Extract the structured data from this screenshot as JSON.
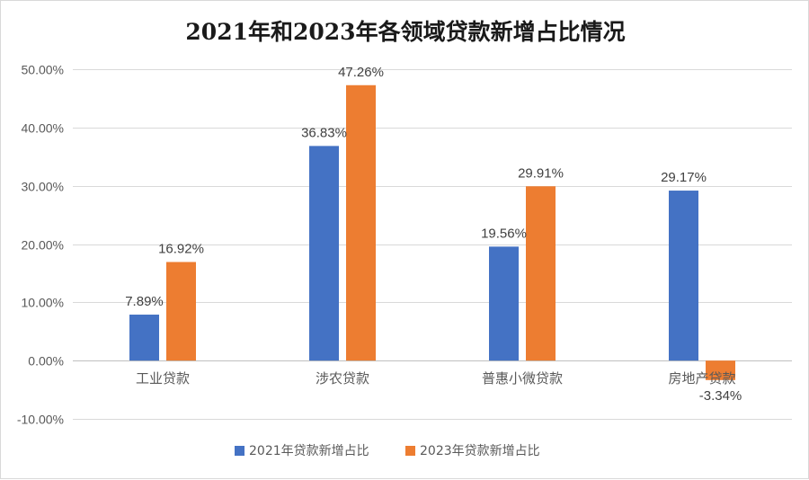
{
  "chart_data": {
    "type": "bar",
    "title": "2021年和2023年各领域贷款新增占比情况",
    "categories": [
      "工业贷款",
      "涉农贷款",
      "普惠小微贷款",
      "房地产贷款"
    ],
    "series": [
      {
        "name": "2021年贷款新增占比",
        "color": "#4472C4",
        "values": [
          7.89,
          36.83,
          19.56,
          29.17
        ],
        "labels": [
          "7.89%",
          "36.83%",
          "19.56%",
          "29.17%"
        ]
      },
      {
        "name": "2023年贷款新增占比",
        "color": "#ED7D31",
        "values": [
          16.92,
          47.26,
          29.91,
          -3.34
        ],
        "labels": [
          "16.92%",
          "47.26%",
          "29.91%",
          "-3.34%"
        ]
      }
    ],
    "yticks": [
      -10,
      0,
      10,
      20,
      30,
      40,
      50
    ],
    "ytick_labels": [
      "-10.00%",
      "0.00%",
      "10.00%",
      "20.00%",
      "30.00%",
      "40.00%",
      "50.00%"
    ],
    "ylim": [
      -10,
      50
    ],
    "xlabel": "",
    "ylabel": "",
    "grid": true,
    "legend_position": "bottom"
  }
}
